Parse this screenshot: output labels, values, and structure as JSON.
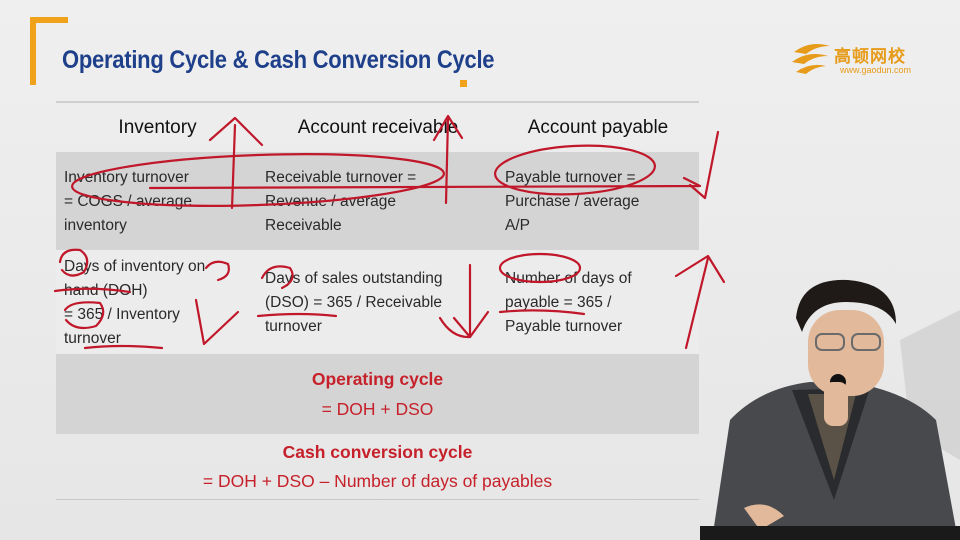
{
  "slide": {
    "title": "Operating Cycle & Cash Conversion Cycle",
    "logo": {
      "name_cn": "高顿网校",
      "url_text": "www.gaodun.com"
    },
    "colors": {
      "title": "#1e3f8a",
      "accent": "#f0a21a",
      "emphasis": "#c6202a",
      "annotation": "#c0182a"
    },
    "table": {
      "headers": [
        "Inventory",
        "Account receivable",
        "Account payable"
      ],
      "turnover_row": [
        "Inventory turnover\n= COGS / average\ninventory",
        "Receivable turnover =\nRevenue / average\nReceivable",
        "Payable turnover =\nPurchase / average\nA/P"
      ],
      "days_row": [
        "Days of inventory on\nhand (DOH)\n= 365 / Inventory\nturnover",
        "Days of sales outstanding\n(DSO) = 365 / Receivable\nturnover",
        "Number of days of\npayable = 365 /\nPayable turnover"
      ]
    },
    "operating_cycle": {
      "label": "Operating cycle",
      "formula": "= DOH + DSO"
    },
    "cash_conversion_cycle": {
      "label": "Cash conversion cycle",
      "formula": "= DOH + DSO – Number of days of payables"
    }
  }
}
